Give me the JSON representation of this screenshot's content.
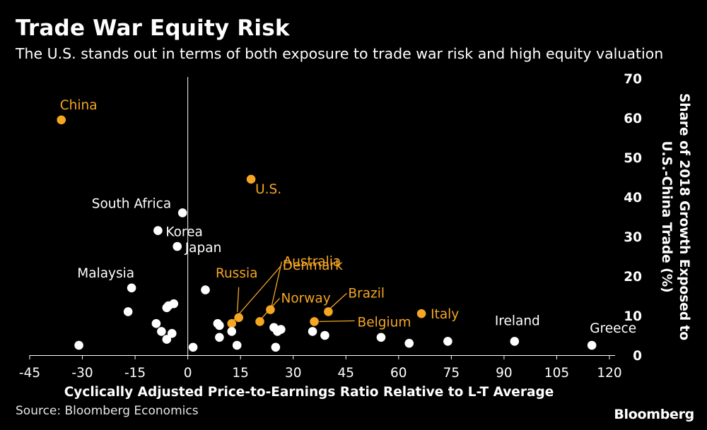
{
  "title": "Trade War Equity Risk",
  "subtitle": "The U.S. stands out in terms of both exposure to trade war risk and high equity valuation",
  "source": "Source: Bloomberg Economics",
  "brand": "Bloomberg",
  "colors": {
    "highlight": "#f5a623",
    "default": "#ffffff",
    "background": "#000000"
  },
  "chart_data": {
    "type": "scatter",
    "title": "Trade War Equity Risk",
    "xlabel": "Cyclically Adjusted Price-to-Earnings Ratio Relative to L-T Average",
    "ylabel": "Share of 2018 Growth Exposed to U.S.-China Trade  (%)",
    "ylabel_lines": [
      "Share of 2018 Growth Exposed to",
      "U.S.-China Trade  (%)"
    ],
    "xlim": [
      -45,
      120
    ],
    "ylim": [
      0,
      70
    ],
    "xticks": [
      "-45",
      "-30",
      "-15",
      "0",
      "15",
      "30",
      "45",
      "60",
      "75",
      "90",
      "105",
      "120"
    ],
    "yticks": [
      "0",
      "10",
      "20",
      "30",
      "40",
      "50",
      "60",
      "70"
    ],
    "x_zero_line": 0,
    "points": [
      {
        "label": "China",
        "x": -36,
        "y": 59.5,
        "highlight": true
      },
      {
        "label": "U.S.",
        "x": 18,
        "y": 44.5,
        "highlight": true
      },
      {
        "label": "South Africa",
        "x": -1.5,
        "y": 36,
        "highlight": false
      },
      {
        "label": "Korea",
        "x": -8.5,
        "y": 31.5,
        "highlight": false
      },
      {
        "label": "Japan",
        "x": -3,
        "y": 27.5,
        "highlight": false
      },
      {
        "label": "Malaysia",
        "x": -16,
        "y": 17,
        "highlight": false
      },
      {
        "label": "Russia",
        "x": 14.5,
        "y": 9.5,
        "highlight": true
      },
      {
        "label": "Australia",
        "x": 23.5,
        "y": 11.5,
        "highlight": true
      },
      {
        "label": "Denmark",
        "x": 12.5,
        "y": 8,
        "highlight": true
      },
      {
        "label": "Norway",
        "x": 20.5,
        "y": 8.5,
        "highlight": true
      },
      {
        "label": "Brazil",
        "x": 40,
        "y": 11,
        "highlight": true
      },
      {
        "label": "Belgium",
        "x": 36,
        "y": 8.5,
        "highlight": true
      },
      {
        "label": "Italy",
        "x": 66.5,
        "y": 10.5,
        "highlight": true
      },
      {
        "label": "Ireland",
        "x": 93,
        "y": 3.5,
        "highlight": false
      },
      {
        "label": "Greece",
        "x": 115,
        "y": 2.5,
        "highlight": false
      },
      {
        "label": "",
        "x": -31,
        "y": 2.5,
        "highlight": false
      },
      {
        "label": "",
        "x": -17,
        "y": 11,
        "highlight": false
      },
      {
        "label": "",
        "x": -9,
        "y": 8,
        "highlight": false
      },
      {
        "label": "",
        "x": -7.5,
        "y": 6,
        "highlight": false
      },
      {
        "label": "",
        "x": -6,
        "y": 12,
        "highlight": false
      },
      {
        "label": "",
        "x": -5.5,
        "y": 12.5,
        "highlight": false
      },
      {
        "label": "",
        "x": -4,
        "y": 13,
        "highlight": false
      },
      {
        "label": "",
        "x": -6,
        "y": 4,
        "highlight": false
      },
      {
        "label": "",
        "x": -4.5,
        "y": 5.5,
        "highlight": false
      },
      {
        "label": "",
        "x": 1.5,
        "y": 2,
        "highlight": false
      },
      {
        "label": "",
        "x": 5,
        "y": 16.5,
        "highlight": false
      },
      {
        "label": "",
        "x": 8.5,
        "y": 8,
        "highlight": false
      },
      {
        "label": "",
        "x": 9,
        "y": 7.5,
        "highlight": false
      },
      {
        "label": "",
        "x": 9,
        "y": 4.5,
        "highlight": false
      },
      {
        "label": "",
        "x": 12.5,
        "y": 6,
        "highlight": false
      },
      {
        "label": "",
        "x": 14,
        "y": 2.5,
        "highlight": false
      },
      {
        "label": "",
        "x": 24.5,
        "y": 7,
        "highlight": false
      },
      {
        "label": "",
        "x": 25.5,
        "y": 6,
        "highlight": false
      },
      {
        "label": "",
        "x": 26.5,
        "y": 6.5,
        "highlight": false
      },
      {
        "label": "",
        "x": 25,
        "y": 2,
        "highlight": false
      },
      {
        "label": "",
        "x": 35.5,
        "y": 6,
        "highlight": false
      },
      {
        "label": "",
        "x": 39,
        "y": 5,
        "highlight": false
      },
      {
        "label": "",
        "x": 55,
        "y": 4.5,
        "highlight": false
      },
      {
        "label": "",
        "x": 63,
        "y": 3,
        "highlight": false
      },
      {
        "label": "",
        "x": 74,
        "y": 3.5,
        "highlight": false
      }
    ]
  }
}
